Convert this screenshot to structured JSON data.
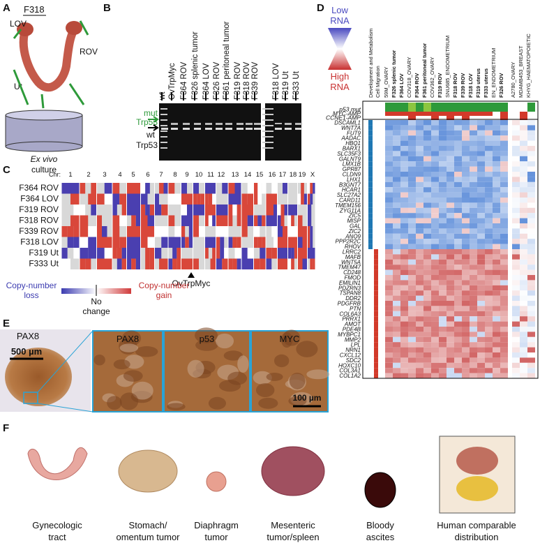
{
  "panel_a": {
    "letter": "A",
    "sample": "F318",
    "lov": "LOV",
    "rov": "ROV",
    "ut": "Ut",
    "culture_1": "Ex vivo",
    "culture_2": "culture"
  },
  "panel_b": {
    "letter": "B",
    "lanes": [
      "wt",
      "OvTrpMyc",
      "F364 ROV",
      "F326 splenic tumor",
      "F364 LOV",
      "F326 ROV",
      "F361 peritoneal tumor",
      "F319 ROV",
      "F318 ROV",
      "F339 ROV",
      "F318 LOV",
      "F319 Ut",
      "F333 Ut"
    ],
    "mut_label": [
      "mut",
      "Trp53"
    ],
    "wt_label": [
      "wt",
      "Trp53"
    ]
  },
  "panel_c": {
    "letter": "C",
    "chr_label": "Chr:",
    "chromosomes": [
      "1",
      "2",
      "3",
      "4",
      "5",
      "6",
      "7",
      "8",
      "9",
      "10",
      "11",
      "12",
      "13",
      "14",
      "15",
      "16",
      "17",
      "18",
      "19",
      "X"
    ],
    "samples": [
      "F364 ROV",
      "F364 LOV",
      "F319 ROV",
      "F318 ROV",
      "F339 ROV",
      "F318 LOV",
      "F319 Ut",
      "F333 Ut"
    ],
    "marker": "OvTrpMyc",
    "legend_loss": [
      "Copy-number",
      "loss"
    ],
    "legend_none": [
      "No",
      "change"
    ],
    "legend_gain": [
      "Copy-number",
      "gain"
    ]
  },
  "panel_d": {
    "letter": "D",
    "legend_low": [
      "Low",
      "RNA"
    ],
    "legend_high": [
      "High",
      "RNA"
    ],
    "columns": [
      "Development and Metabolism",
      "Cell Migration",
      "59M_OVARY",
      "F326 splenic tumor",
      "F364 LOV",
      "COV318_OVARY",
      "F364 ROV",
      "F361 peritoneal tumor",
      "COV362_OVARY",
      "F319 ROV",
      "SNU685_ENDOMETRIUM",
      "F318 ROV",
      "F339 ROV",
      "F318 LOV",
      "F319 uterus",
      "F333 uterus",
      "EN_ENDOMETRIUM",
      "F326 ROV",
      "A2780_OVARY",
      "MDAMB453_BREAST",
      "KHYG_HAEMATOPOIETIC"
    ],
    "annotations": [
      "p53 mut",
      "MYC-AMP",
      "CCNE1-AMP"
    ],
    "genes": [
      "DSCAML1",
      "WNT7A",
      "FUT9",
      "AADAC",
      "HBQ1",
      "BARX1",
      "SLC35F3",
      "GALNT9",
      "LMX1B",
      "GPR87",
      "CLDN9",
      "LHX1",
      "B3GNT7",
      "HCAR1",
      "SLC27A2",
      "CARD11",
      "TMEM156",
      "ZYG11A",
      "ZIC5",
      "MISP",
      "GAL",
      "ZIC2",
      "ANO9",
      "PPP2R2C",
      "RHOV",
      "LRRC2",
      "MAFB",
      "WNT5A",
      "TMEM47",
      "CD248",
      "FMOD",
      "EMILIN1",
      "PDZRN3",
      "TSPAN8",
      "DDR2",
      "PDGFRB",
      "PTN",
      "COL6A3",
      "PRRX1",
      "AMOT",
      "PDE4B",
      "MYBPC1",
      "MMP2",
      "LPL",
      "NRN1",
      "CXCL12",
      "SDC2",
      "HOXC10",
      "COL3A1",
      "COL1A2"
    ]
  },
  "panel_e": {
    "letter": "E",
    "overview_stain": "PAX8",
    "scale_large": "500 µm",
    "zoom_stains": [
      "PAX8",
      "p53",
      "MYC"
    ],
    "scale_small": "100 µm"
  },
  "panel_f": {
    "letter": "F",
    "items": [
      [
        "Gynecologic",
        "tract"
      ],
      [
        "Stomach/",
        "omentum tumor"
      ],
      [
        "Diaphragm",
        "tumor"
      ],
      [
        "Mesenteric",
        "tumor/spleen"
      ],
      [
        "Bloody",
        "ascites"
      ],
      [
        "Human comparable",
        "distribution"
      ]
    ]
  }
}
